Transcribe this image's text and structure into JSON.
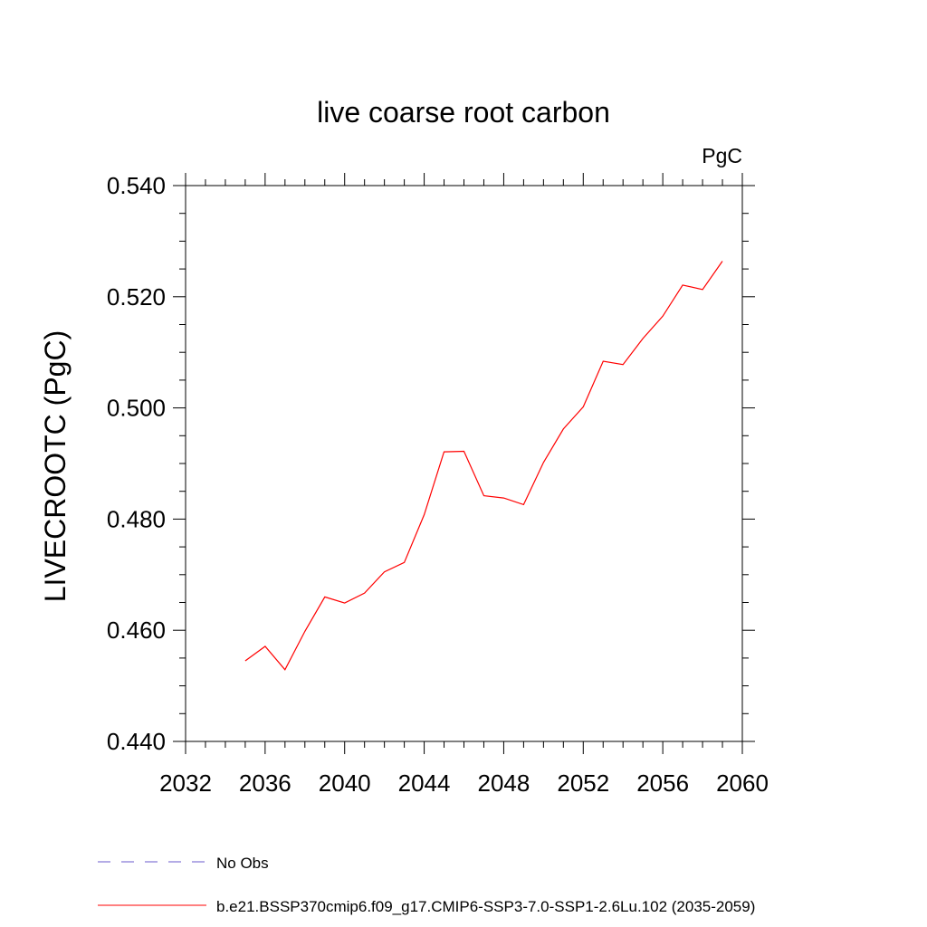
{
  "chart_data": {
    "type": "line",
    "title": "live coarse root carbon",
    "units_label": "PgC",
    "ylabel": "LIVECROOTC  (PgC)",
    "xlabel": "",
    "xlim": [
      2032,
      2060
    ],
    "ylim": [
      0.44,
      0.54
    ],
    "x_ticks": [
      2032,
      2036,
      2040,
      2044,
      2048,
      2052,
      2056,
      2060
    ],
    "x_tick_labels": [
      "2032",
      "2036",
      "2040",
      "2044",
      "2048",
      "2052",
      "2056",
      "2060"
    ],
    "y_ticks": [
      0.44,
      0.46,
      0.48,
      0.5,
      0.52,
      0.54
    ],
    "y_tick_labels": [
      "0.440",
      "0.460",
      "0.480",
      "0.500",
      "0.520",
      "0.540"
    ],
    "grid": false,
    "legend_position": "bottom-left",
    "series": [
      {
        "name": "b.e21.BSSP370cmip6.f09_g17.CMIP6-SSP3-7.0-SSP1-2.6Lu.102 (2035-2059)",
        "color": "#ff0000",
        "style": "solid",
        "x": [
          2035,
          2036,
          2037,
          2038,
          2039,
          2040,
          2041,
          2042,
          2043,
          2044,
          2045,
          2046,
          2047,
          2048,
          2049,
          2050,
          2051,
          2052,
          2053,
          2054,
          2055,
          2056,
          2057,
          2058,
          2059
        ],
        "y": [
          0.4545,
          0.4571,
          0.4529,
          0.4598,
          0.466,
          0.4649,
          0.4667,
          0.4705,
          0.4722,
          0.4808,
          0.4921,
          0.4922,
          0.4842,
          0.4838,
          0.4826,
          0.4902,
          0.4962,
          0.5002,
          0.5084,
          0.5078,
          0.5125,
          0.5165,
          0.5221,
          0.5213,
          0.5264
        ]
      },
      {
        "name": "No Obs",
        "color": "#6a5acd",
        "style": "dashed",
        "x": [],
        "y": []
      }
    ]
  }
}
